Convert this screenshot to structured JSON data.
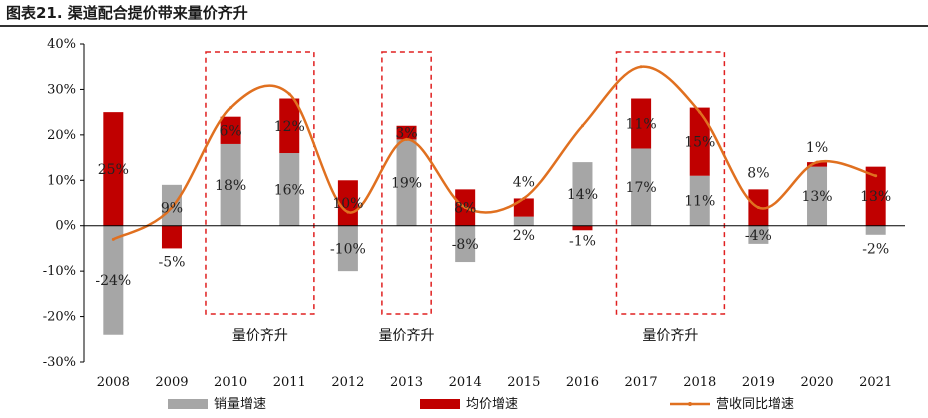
{
  "figure_title": "图表21. 渠道配合提价带来量价齐升",
  "chart_data": {
    "type": "bar",
    "categories": [
      "2008",
      "2009",
      "2010",
      "2011",
      "2012",
      "2013",
      "2014",
      "2015",
      "2016",
      "2017",
      "2018",
      "2019",
      "2020",
      "2021"
    ],
    "series": [
      {
        "name": "销量增速",
        "kind": "bar",
        "color": "#a6a6a6",
        "values": [
          -24,
          9,
          18,
          16,
          -10,
          19,
          -8,
          2,
          14,
          17,
          11,
          -4,
          13,
          -2
        ],
        "labels": [
          "-24%",
          "",
          "18%",
          "16%",
          "-10%",
          "19%",
          "-8%",
          "2%",
          "14%",
          "17%",
          "11%",
          "-4%",
          "13%",
          "-2%"
        ]
      },
      {
        "name": "均价增速",
        "kind": "bar",
        "color": "#c00000",
        "values": [
          25,
          -5,
          6,
          12,
          10,
          3,
          8,
          4,
          -1,
          11,
          15,
          8,
          1,
          13
        ],
        "labels": [
          "25%",
          "-5%",
          "6%",
          "12%",
          "10%",
          "3%",
          "8%",
          "4%",
          "-1%",
          "11%",
          "15%",
          "8%",
          "1%",
          "13%"
        ]
      },
      {
        "name": "营收同比增速",
        "kind": "line",
        "color": "#e07020",
        "values": [
          -3,
          4,
          26,
          29,
          3,
          19,
          4,
          6,
          22,
          35,
          25,
          4,
          14,
          11
        ]
      }
    ],
    "y_range": [
      -30,
      40
    ],
    "y_ticks": [
      "-30%",
      "-20%",
      "-10%",
      "0%",
      "10%",
      "20%",
      "30%",
      "40%"
    ],
    "highlight_boxes": [
      {
        "from": "2010",
        "to": "2011",
        "label": "量价齐升"
      },
      {
        "from": "2013",
        "to": "2013",
        "label": "量价齐升"
      },
      {
        "from": "2017",
        "to": "2018",
        "label": "量价齐升"
      }
    ]
  }
}
